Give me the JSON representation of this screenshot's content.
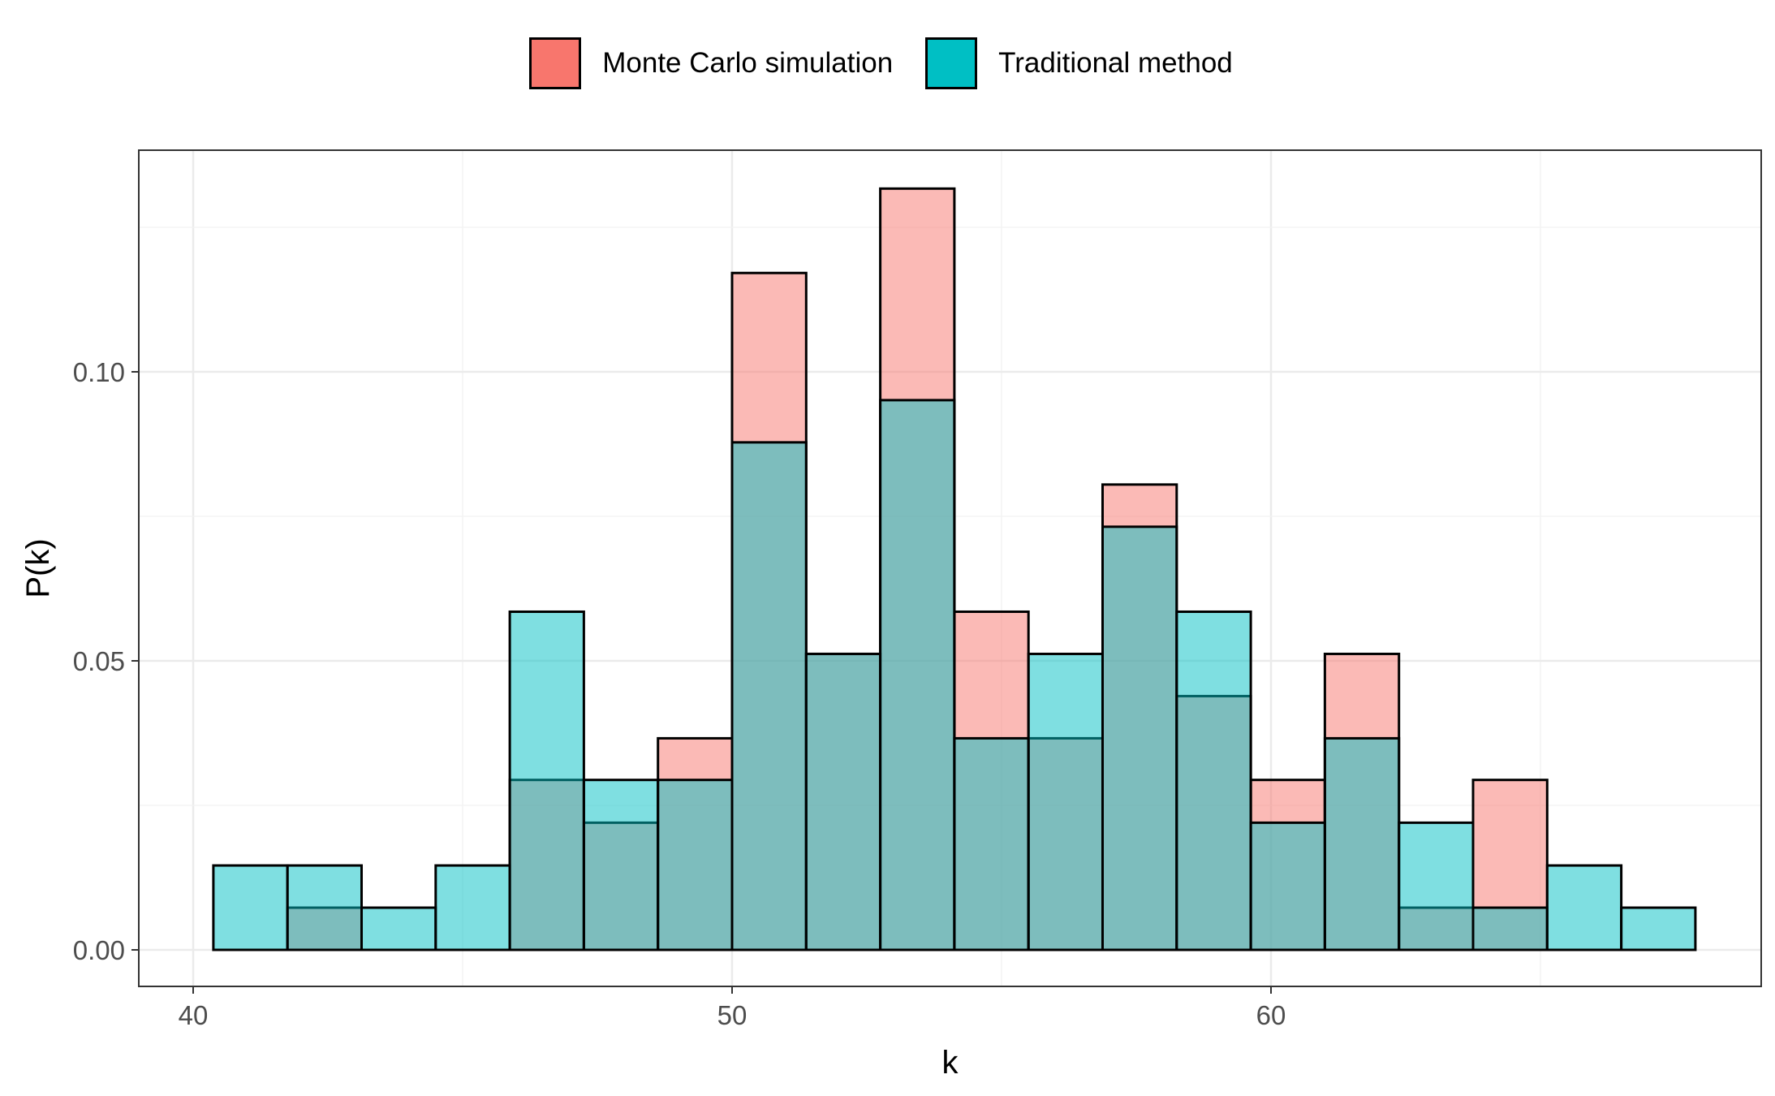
{
  "chart_data": {
    "type": "bar",
    "subtype": "overlapping-histogram",
    "xlabel": "k",
    "ylabel": "P(k)",
    "xlim": [
      39,
      66.5
    ],
    "ylim": [
      -0.0066,
      0.138
    ],
    "x_ticks": [
      40,
      50,
      60
    ],
    "x_tick_labels": [
      "40",
      "50",
      "60"
    ],
    "y_ticks": [
      0.0,
      0.05,
      0.1
    ],
    "y_tick_labels": [
      "0.00",
      "0.05",
      "0.10"
    ],
    "grid": true,
    "legend_position": "top",
    "bin_edges": [
      40.375,
      41.75,
      43.125,
      44.5,
      45.875,
      47.25,
      48.625,
      50.0,
      51.375,
      52.75,
      54.125,
      55.5,
      56.875,
      58.25,
      59.625,
      61.0,
      62.375,
      63.75,
      65.125,
      66.5,
      67.875
    ],
    "series": [
      {
        "name": "Monte Carlo simulation",
        "color": "#F8766D",
        "opacity": 0.5,
        "values": [
          0.0,
          0.0073,
          0.0,
          0.0,
          0.0294,
          0.022,
          0.0366,
          0.1171,
          0.0512,
          0.1317,
          0.0585,
          0.0366,
          0.0805,
          0.0439,
          0.0294,
          0.0512,
          0.0073,
          0.0294,
          0.0,
          0.0
        ]
      },
      {
        "name": "Traditional method",
        "color": "#00BFC4",
        "opacity": 0.5,
        "values": [
          0.0146,
          0.0146,
          0.0073,
          0.0146,
          0.0585,
          0.0294,
          0.0294,
          0.0878,
          0.0512,
          0.0951,
          0.0366,
          0.0512,
          0.0732,
          0.0585,
          0.022,
          0.0366,
          0.022,
          0.0073,
          0.0146,
          0.0073
        ]
      }
    ]
  }
}
